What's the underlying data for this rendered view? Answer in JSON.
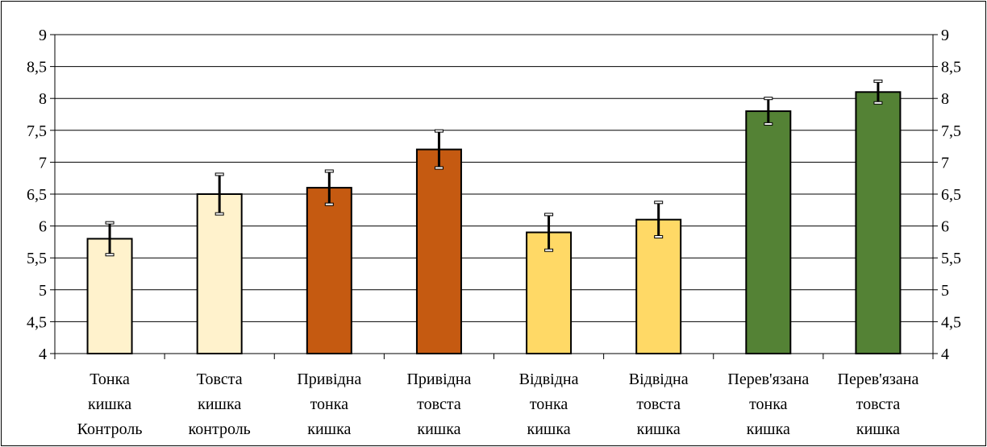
{
  "chart_data": {
    "type": "bar",
    "title": "",
    "xlabel": "",
    "ylabel": "",
    "ylim": [
      4,
      9
    ],
    "ytick_step": 0.5,
    "ytick_labels": [
      "4",
      "4,5",
      "5",
      "5,5",
      "6",
      "6,5",
      "7",
      "7,5",
      "8",
      "8,5",
      "9"
    ],
    "grid": true,
    "secondary_y_axis": true,
    "legend": "none",
    "categories": [
      [
        "Тонка",
        "кишка",
        "Контроль"
      ],
      [
        "Товста",
        "кишка",
        "контроль"
      ],
      [
        "Привідна",
        "тонка",
        "кишка"
      ],
      [
        "Привідна",
        "товста",
        "кишка"
      ],
      [
        "Відвідна",
        "тонка",
        "кишка"
      ],
      [
        "Відвідна",
        "товста",
        "кишка"
      ],
      [
        "Перев'язана",
        "тонка",
        "кишка"
      ],
      [
        "Перев'язана",
        "товста",
        "кишка"
      ]
    ],
    "values": [
      5.8,
      6.5,
      6.6,
      7.2,
      5.9,
      6.1,
      7.8,
      8.1
    ],
    "errors": [
      0.25,
      0.31,
      0.26,
      0.29,
      0.28,
      0.27,
      0.2,
      0.17
    ],
    "colors": [
      "#FFF2CC",
      "#FFF2CC",
      "#C55A11",
      "#C55A11",
      "#FFD966",
      "#FFD966",
      "#548235",
      "#548235"
    ]
  }
}
